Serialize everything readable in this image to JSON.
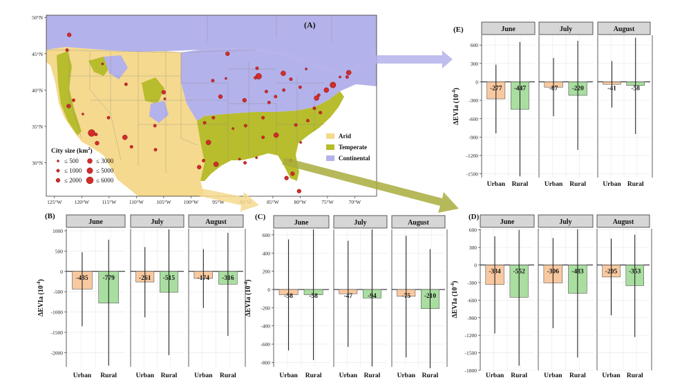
{
  "colors": {
    "arid": "#f5d98e",
    "temperate": "#b7bd2c",
    "continental": "#b4b2ea",
    "ocean": "#ffffff",
    "urban_bar": "#f8c9a0",
    "rural_bar": "#a9dea0",
    "strip": "#d6d6d6",
    "city_dot": "#d42b2b",
    "arrow_continental": "#b4b2ea",
    "arrow_arid": "#f5d98e",
    "arrow_temperate": "#a9ad3c"
  },
  "map": {
    "panel_label": "(A)",
    "lat_labels": [
      "50°N",
      "45°N",
      "40°N",
      "35°N",
      "30°N"
    ],
    "lon_labels": [
      "125°W",
      "120°W",
      "115°W",
      "110°W",
      "105°W",
      "100°W",
      "95°W",
      "90°W",
      "85°W",
      "80°W",
      "75°W",
      "70°W"
    ],
    "legend_climate": [
      {
        "label": "Arid",
        "color_key": "arid"
      },
      {
        "label": "Temperate",
        "color_key": "temperate"
      },
      {
        "label": "Continental",
        "color_key": "continental"
      }
    ],
    "city_size_title": "City size (km",
    "city_size_sup": "2",
    "city_size_close": ")",
    "city_size_legend": [
      "≤ 500",
      "≤ 3000",
      "≤ 1000",
      "≤ 5000",
      "≤ 2000",
      "≤ 6000"
    ],
    "cities": [
      {
        "lon": -122.3,
        "lat": 47.6,
        "size": 3
      },
      {
        "lon": -122.7,
        "lat": 45.5,
        "size": 2
      },
      {
        "lon": -122.4,
        "lat": 37.8,
        "size": 3
      },
      {
        "lon": -121.5,
        "lat": 38.6,
        "size": 2
      },
      {
        "lon": -119.8,
        "lat": 36.7,
        "size": 1
      },
      {
        "lon": -118.2,
        "lat": 34.1,
        "size": 6
      },
      {
        "lon": -117.2,
        "lat": 32.7,
        "size": 3
      },
      {
        "lon": -117.4,
        "lat": 33.9,
        "size": 2
      },
      {
        "lon": -115.1,
        "lat": 36.2,
        "size": 2
      },
      {
        "lon": -112.1,
        "lat": 33.5,
        "size": 4
      },
      {
        "lon": -110.9,
        "lat": 32.2,
        "size": 2
      },
      {
        "lon": -111.9,
        "lat": 40.8,
        "size": 2
      },
      {
        "lon": -116.2,
        "lat": 43.6,
        "size": 1
      },
      {
        "lon": -105.0,
        "lat": 39.7,
        "size": 3
      },
      {
        "lon": -104.8,
        "lat": 38.8,
        "size": 1
      },
      {
        "lon": -106.6,
        "lat": 35.1,
        "size": 2
      },
      {
        "lon": -106.5,
        "lat": 31.8,
        "size": 2
      },
      {
        "lon": -98.5,
        "lat": 29.4,
        "size": 3
      },
      {
        "lon": -97.7,
        "lat": 30.3,
        "size": 2
      },
      {
        "lon": -96.8,
        "lat": 32.8,
        "size": 4
      },
      {
        "lon": -95.4,
        "lat": 29.8,
        "size": 4
      },
      {
        "lon": -97.5,
        "lat": 35.5,
        "size": 2
      },
      {
        "lon": -95.9,
        "lat": 36.2,
        "size": 2
      },
      {
        "lon": -94.6,
        "lat": 39.1,
        "size": 3
      },
      {
        "lon": -96.0,
        "lat": 41.3,
        "size": 2
      },
      {
        "lon": -93.3,
        "lat": 45.0,
        "size": 3
      },
      {
        "lon": -93.6,
        "lat": 41.6,
        "size": 1
      },
      {
        "lon": -90.2,
        "lat": 38.6,
        "size": 3
      },
      {
        "lon": -87.6,
        "lat": 41.9,
        "size": 5
      },
      {
        "lon": -87.9,
        "lat": 43.0,
        "size": 2
      },
      {
        "lon": -86.2,
        "lat": 39.8,
        "size": 2
      },
      {
        "lon": -84.5,
        "lat": 39.1,
        "size": 2
      },
      {
        "lon": -83.0,
        "lat": 40.0,
        "size": 2
      },
      {
        "lon": -83.1,
        "lat": 42.3,
        "size": 4
      },
      {
        "lon": -81.7,
        "lat": 41.5,
        "size": 2
      },
      {
        "lon": -80.0,
        "lat": 40.4,
        "size": 2
      },
      {
        "lon": -78.9,
        "lat": 42.9,
        "size": 1
      },
      {
        "lon": -85.7,
        "lat": 38.3,
        "size": 2
      },
      {
        "lon": -86.8,
        "lat": 36.2,
        "size": 2
      },
      {
        "lon": -90.0,
        "lat": 35.1,
        "size": 2
      },
      {
        "lon": -86.8,
        "lat": 33.5,
        "size": 2
      },
      {
        "lon": -84.4,
        "lat": 33.8,
        "size": 4
      },
      {
        "lon": -80.8,
        "lat": 35.2,
        "size": 2
      },
      {
        "lon": -78.6,
        "lat": 35.8,
        "size": 2
      },
      {
        "lon": -77.4,
        "lat": 37.5,
        "size": 2
      },
      {
        "lon": -77.0,
        "lat": 38.9,
        "size": 4
      },
      {
        "lon": -76.6,
        "lat": 39.3,
        "size": 2
      },
      {
        "lon": -75.2,
        "lat": 40.0,
        "size": 4
      },
      {
        "lon": -74.0,
        "lat": 40.7,
        "size": 5
      },
      {
        "lon": -71.1,
        "lat": 42.4,
        "size": 4
      },
      {
        "lon": -71.4,
        "lat": 41.8,
        "size": 2
      },
      {
        "lon": -72.7,
        "lat": 41.8,
        "size": 1
      },
      {
        "lon": -81.7,
        "lat": 30.3,
        "size": 2
      },
      {
        "lon": -82.5,
        "lat": 27.9,
        "size": 3
      },
      {
        "lon": -81.4,
        "lat": 28.5,
        "size": 3
      },
      {
        "lon": -80.2,
        "lat": 26.1,
        "size": 3
      },
      {
        "lon": -90.1,
        "lat": 30.0,
        "size": 2
      },
      {
        "lon": -91.1,
        "lat": 30.5,
        "size": 1
      },
      {
        "lon": -92.3,
        "lat": 34.7,
        "size": 1
      },
      {
        "lon": -88.0,
        "lat": 30.7,
        "size": 1
      },
      {
        "lon": -79.9,
        "lat": 32.8,
        "size": 1
      },
      {
        "lon": -76.3,
        "lat": 36.9,
        "size": 2
      },
      {
        "lon": -88.2,
        "lat": 41.7,
        "size": 2
      }
    ]
  },
  "chart_data": [
    {
      "type": "bar",
      "panel": "(B)",
      "ylabel": "ΔEVIa (10",
      "ylabel_sup": "-4",
      "ylabel_close": ")",
      "ylim": [
        -2350,
        1050
      ],
      "yticks": [
        1000,
        500,
        0,
        -500,
        -1000,
        -1500,
        -2000
      ],
      "facets": [
        "June",
        "July",
        "August"
      ],
      "categories": [
        "Urban",
        "Rural"
      ],
      "series": [
        {
          "facet": "June",
          "values": [
            -435,
            -779
          ],
          "err_high": [
            470,
            780
          ],
          "err_low": [
            -1350,
            -2320
          ]
        },
        {
          "facet": "July",
          "values": [
            -261,
            -515
          ],
          "err_high": [
            600,
            1030
          ],
          "err_low": [
            -1130,
            -2060
          ]
        },
        {
          "facet": "August",
          "values": [
            -174,
            -316
          ],
          "err_high": [
            550,
            950
          ],
          "err_low": [
            -900,
            -1590
          ]
        }
      ]
    },
    {
      "type": "bar",
      "panel": "(C)",
      "ylabel": "ΔEVIa (10",
      "ylabel_sup": "-4",
      "ylabel_close": ")",
      "ylim": [
        -850,
        660
      ],
      "yticks": [
        600,
        400,
        200,
        0,
        -200,
        -400,
        -600,
        -800
      ],
      "facets": [
        "June",
        "July",
        "August"
      ],
      "categories": [
        "Urban",
        "Rural"
      ],
      "series": [
        {
          "facet": "June",
          "values": [
            -58,
            -58
          ],
          "err_high": [
            550,
            660
          ],
          "err_low": [
            -670,
            -775
          ]
        },
        {
          "facet": "July",
          "values": [
            -47,
            -94
          ],
          "err_high": [
            535,
            660
          ],
          "err_low": [
            -630,
            -845
          ]
        },
        {
          "facet": "August",
          "values": [
            -75,
            -210
          ],
          "err_high": [
            590,
            445
          ],
          "err_low": [
            -745,
            -865
          ]
        }
      ]
    },
    {
      "type": "bar",
      "panel": "(D)",
      "ylabel": "ΔEVIa (10",
      "ylabel_sup": "-4",
      "ylabel_close": ")",
      "ylim": [
        -1800,
        620
      ],
      "yticks": [
        600,
        300,
        0,
        -300,
        -600,
        -900,
        -1200,
        -1500,
        -1800
      ],
      "facets": [
        "June",
        "July",
        "August"
      ],
      "categories": [
        "Urban",
        "Rural"
      ],
      "series": [
        {
          "facet": "June",
          "values": [
            -334,
            -552
          ],
          "err_high": [
            490,
            600
          ],
          "err_low": [
            -1170,
            -1720
          ]
        },
        {
          "facet": "July",
          "values": [
            -306,
            -483
          ],
          "err_high": [
            460,
            610
          ],
          "err_low": [
            -1080,
            -1580
          ]
        },
        {
          "facet": "August",
          "values": [
            -205,
            -353
          ],
          "err_high": [
            450,
            520
          ],
          "err_low": [
            -860,
            -1230
          ]
        }
      ]
    },
    {
      "type": "bar",
      "panel": "(E)",
      "ylabel": "ΔEVIa (10",
      "ylabel_sup": "-4",
      "ylabel_close": ")",
      "ylim": [
        -1560,
        760
      ],
      "yticks": [
        600,
        300,
        0,
        -300,
        -600,
        -900,
        -1200,
        -1500
      ],
      "facets": [
        "June",
        "July",
        "August"
      ],
      "categories": [
        "Urban",
        "Rural"
      ],
      "series": [
        {
          "facet": "June",
          "values": [
            -277,
            -447
          ],
          "err_high": [
            280,
            650
          ],
          "err_low": [
            -840,
            -1540
          ]
        },
        {
          "facet": "July",
          "values": [
            -87,
            -220
          ],
          "err_high": [
            390,
            670
          ],
          "err_low": [
            -560,
            -1110
          ]
        },
        {
          "facet": "August",
          "values": [
            -41,
            -58
          ],
          "err_high": [
            340,
            720
          ],
          "err_low": [
            -420,
            -850
          ]
        }
      ]
    }
  ]
}
